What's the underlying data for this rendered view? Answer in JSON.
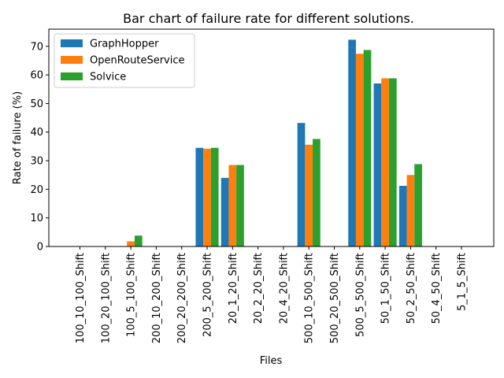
{
  "chart_data": {
    "type": "bar",
    "title": "Bar chart of failure rate for different solutions.",
    "xlabel": "Files",
    "ylabel": "Rate of failure (%)",
    "ylim": [
      0,
      76
    ],
    "yticks": [
      0,
      10,
      20,
      30,
      40,
      50,
      60,
      70
    ],
    "grid": false,
    "legend_position": "top-left",
    "categories": [
      "100_10_100_Shift",
      "100_20_100_Shift",
      "100_5_100_Shift",
      "200_10_200_Shift",
      "200_20_200_Shift",
      "200_5_200_Shift",
      "20_1_20_Shift",
      "20_2_20_Shift",
      "20_4_20_Shift",
      "500_10_500_Shift",
      "500_20_500_Shift",
      "500_5_500_Shift",
      "50_1_50_Shift",
      "50_2_50_Shift",
      "50_4_50_Shift",
      "5_1_5_Shift"
    ],
    "series": [
      {
        "name": "GraphHopper",
        "color": "#1f77b4",
        "values": [
          0,
          0,
          0,
          0,
          0,
          34.5,
          24,
          0,
          0,
          43.2,
          0,
          72.3,
          57,
          21.2,
          0,
          0
        ]
      },
      {
        "name": "OpenRouteService",
        "color": "#ff7f0e",
        "values": [
          0,
          0,
          1.8,
          0,
          0,
          34.2,
          28.5,
          0,
          0,
          35.6,
          0,
          67.4,
          58.8,
          25,
          0,
          0
        ]
      },
      {
        "name": "Solvice",
        "color": "#2ca02c",
        "values": [
          0,
          0,
          3.8,
          0,
          0,
          34.5,
          28.5,
          0,
          0,
          37.6,
          0,
          68.7,
          58.8,
          28.8,
          0,
          0
        ]
      }
    ]
  }
}
